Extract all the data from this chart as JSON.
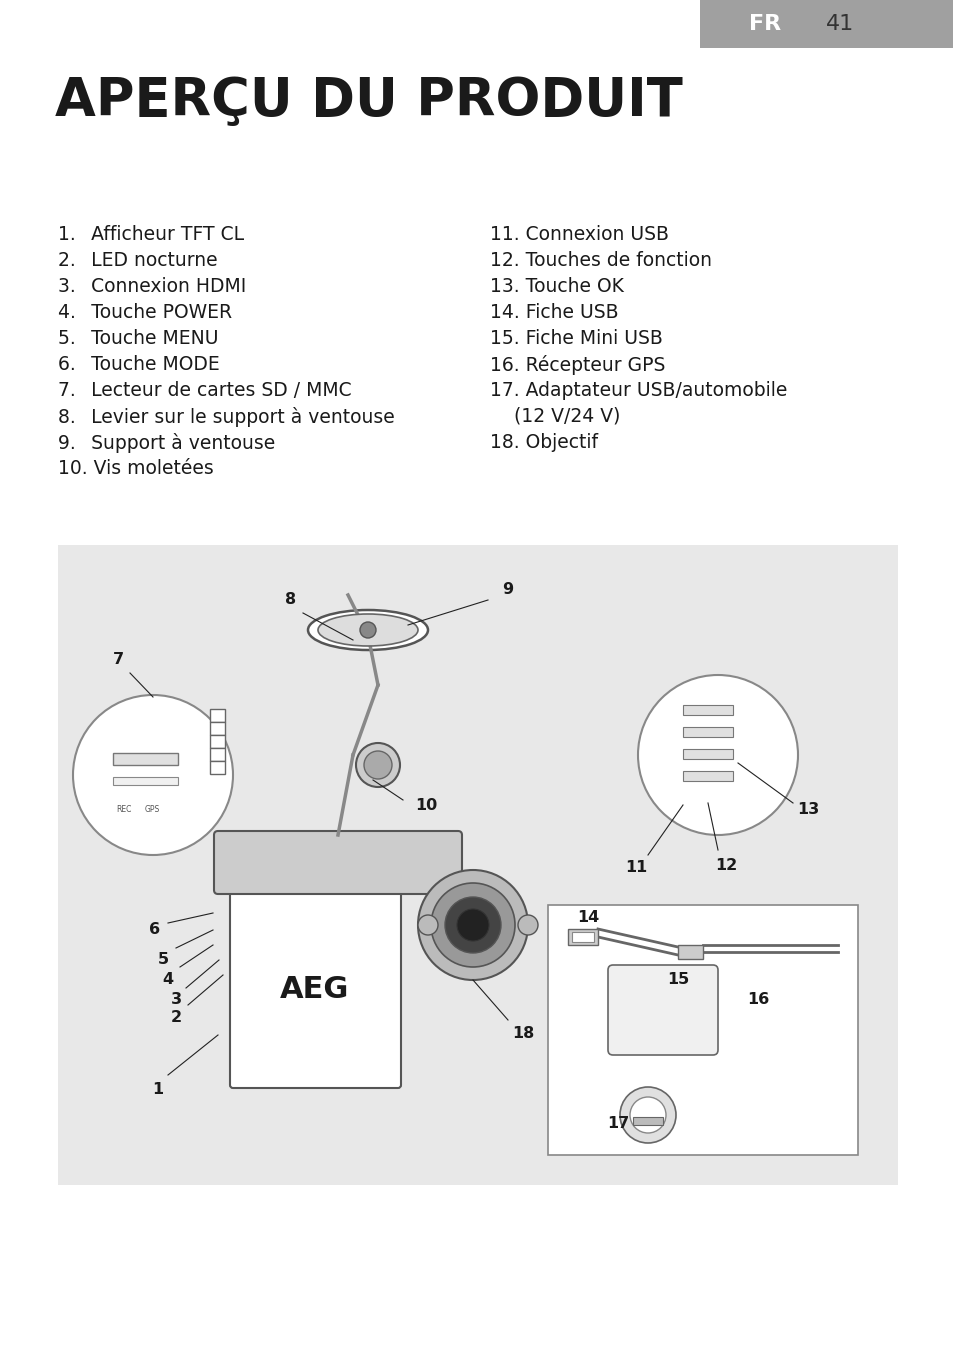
{
  "page_bg": "#ffffff",
  "title": "APERÇU DU PRODUIT",
  "page_number": "41",
  "page_label": "FR",
  "tab_color": "#a0a0a0",
  "diagram_bg": "#e8e8e8",
  "list_left": [
    "1.  Afficheur TFT CL",
    "2.  LED nocturne",
    "3.  Connexion HDMI",
    "4.  Touche POWER",
    "5.  Touche MENU",
    "6.  Touche MODE",
    "7.  Lecteur de cartes SD / MMC",
    "8.  Levier sur le support à ventouse",
    "9.  Support à ventouse",
    "10. Vis moletées"
  ],
  "list_right": [
    "11. Connexion USB",
    "12. Touches de fonction",
    "13. Touche OK",
    "14. Fiche USB",
    "15. Fiche Mini USB",
    "16. Récepteur GPS",
    "17. Adaptateur USB/automobile",
    "    (12 V/24 V)",
    "18. Objectif"
  ],
  "title_fontsize": 38,
  "list_fontsize": 13.5,
  "page_num_fontsize": 16
}
